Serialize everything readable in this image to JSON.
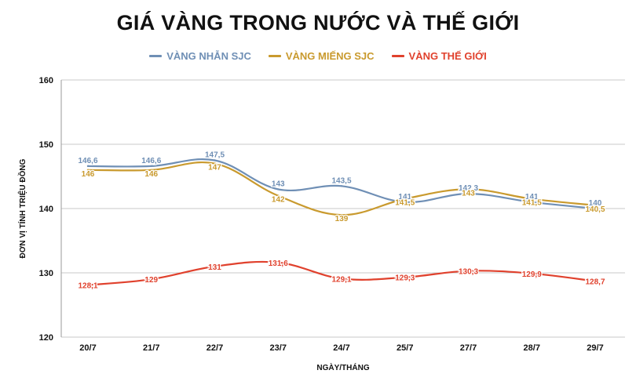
{
  "chart_data": {
    "type": "line",
    "title": "GIÁ VÀNG TRONG NƯỚC VÀ THẾ GIỚI",
    "xlabel": "NGÀY/THÁNG",
    "ylabel": "ĐƠN VỊ TÍNH TRIỆU ĐỒNG",
    "categories": [
      "20/7",
      "21/7",
      "22/7",
      "23/7",
      "24/7",
      "25/7",
      "27/7",
      "28/7",
      "29/7"
    ],
    "ylim": [
      120,
      160
    ],
    "yticks": [
      "120",
      "130",
      "140",
      "150",
      "160"
    ],
    "grid": true,
    "legend_position": "top",
    "series": [
      {
        "name": "VÀNG NHẪN SJC",
        "color": "#6f8fb5",
        "values": [
          146.6,
          146.6,
          147.5,
          143,
          143.5,
          141,
          142.3,
          141,
          140
        ],
        "labels": [
          "146,6",
          "146,6",
          "147,5",
          "143",
          "143,5",
          "141",
          "142,3",
          "141",
          "140"
        ]
      },
      {
        "name": "VÀNG MIẾNG SJC",
        "color": "#c99a2e",
        "values": [
          146,
          146,
          147,
          142,
          139,
          141.5,
          143,
          141.5,
          140.5
        ],
        "labels": [
          "146",
          "146",
          "147",
          "142",
          "139",
          "141,5",
          "143",
          "141,5",
          "140,5"
        ]
      },
      {
        "name": "VÀNG THẾ GIỚI",
        "color": "#e0412d",
        "values": [
          128.1,
          129,
          131,
          131.6,
          129.1,
          129.3,
          130.3,
          129.9,
          128.7
        ],
        "labels": [
          "128,1",
          "129",
          "131",
          "131,6",
          "129,1",
          "129,3",
          "130,3",
          "129,9",
          "128,7"
        ]
      }
    ]
  }
}
